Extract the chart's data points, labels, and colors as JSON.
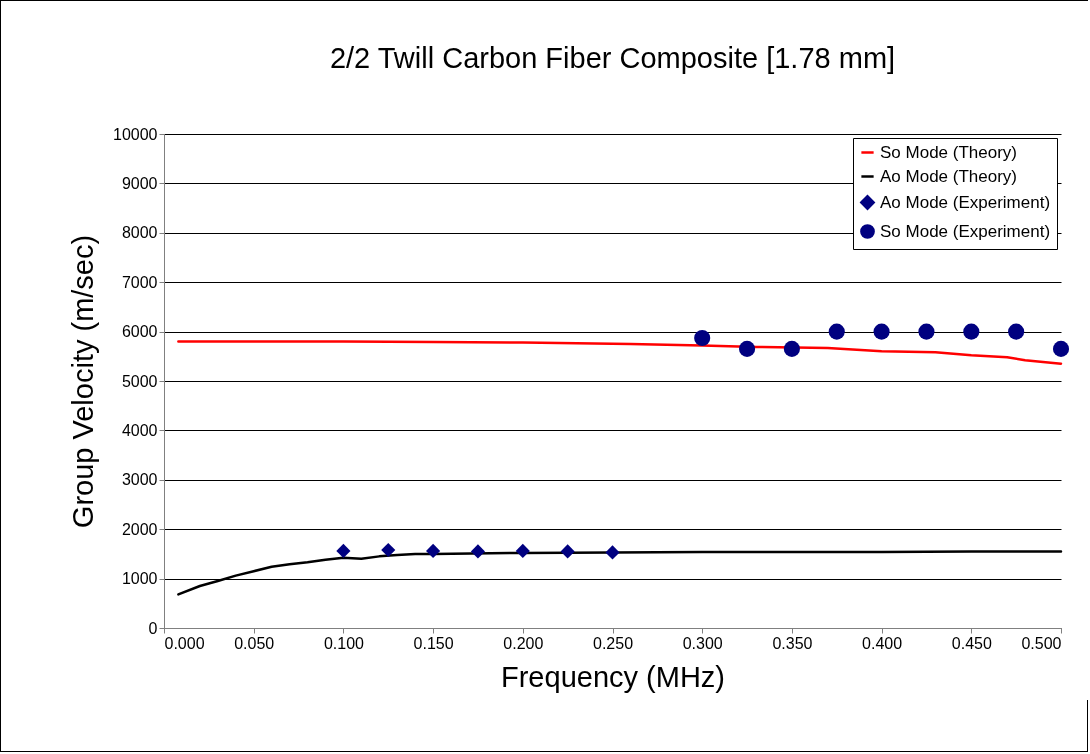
{
  "chart_data": {
    "type": "line",
    "title": "2/2 Twill Carbon Fiber Composite [1.78 mm]",
    "xlabel": "Frequency (MHz)",
    "ylabel": "Group Velocity (m/sec)",
    "xlim": [
      0,
      0.5
    ],
    "ylim": [
      0,
      10000
    ],
    "xticks": [
      {
        "value": 0,
        "label": "0.000"
      },
      {
        "value": 0.05,
        "label": "0.050"
      },
      {
        "value": 0.1,
        "label": "0.100"
      },
      {
        "value": 0.15,
        "label": "0.150"
      },
      {
        "value": 0.2,
        "label": "0.200"
      },
      {
        "value": 0.25,
        "label": "0.250"
      },
      {
        "value": 0.3,
        "label": "0.300"
      },
      {
        "value": 0.35,
        "label": "0.350"
      },
      {
        "value": 0.4,
        "label": "0.400"
      },
      {
        "value": 0.45,
        "label": "0.450"
      },
      {
        "value": 0.5,
        "label": "0.500"
      }
    ],
    "yticks": [
      0,
      1000,
      2000,
      3000,
      4000,
      5000,
      6000,
      7000,
      8000,
      9000,
      10000
    ],
    "grid": "y",
    "legend": "top right",
    "series": [
      {
        "name": "So Mode (Theory)",
        "type": "line",
        "color": "#ff0000",
        "x": [
          0.008,
          0.05,
          0.1,
          0.15,
          0.2,
          0.26,
          0.3,
          0.33,
          0.37,
          0.4,
          0.43,
          0.45,
          0.47,
          0.48,
          0.5
        ],
        "values": [
          5800,
          5800,
          5800,
          5790,
          5780,
          5750,
          5720,
          5690,
          5670,
          5600,
          5580,
          5520,
          5480,
          5420,
          5350
        ]
      },
      {
        "name": "Ao Mode (Theory)",
        "type": "line",
        "color": "#000000",
        "x": [
          0.008,
          0.02,
          0.03,
          0.04,
          0.05,
          0.06,
          0.07,
          0.08,
          0.09,
          0.1,
          0.11,
          0.12,
          0.13,
          0.14,
          0.15,
          0.2,
          0.25,
          0.3,
          0.35,
          0.4,
          0.45,
          0.5
        ],
        "values": [
          680,
          850,
          950,
          1060,
          1150,
          1240,
          1290,
          1330,
          1380,
          1420,
          1400,
          1450,
          1480,
          1500,
          1500,
          1520,
          1530,
          1540,
          1540,
          1540,
          1550,
          1550
        ]
      },
      {
        "name": "Ao Mode (Experiment)",
        "type": "scatter",
        "marker": "diamond",
        "color": "#000080",
        "x": [
          0.1,
          0.125,
          0.15,
          0.175,
          0.2,
          0.225,
          0.25
        ],
        "values": [
          1560,
          1580,
          1560,
          1550,
          1560,
          1550,
          1530
        ]
      },
      {
        "name": "So Mode (Experiment)",
        "type": "scatter",
        "marker": "circle",
        "color": "#000080",
        "x": [
          0.3,
          0.325,
          0.35,
          0.375,
          0.4,
          0.425,
          0.45,
          0.475,
          0.5
        ],
        "values": [
          5870,
          5650,
          5650,
          6000,
          6000,
          6000,
          6000,
          6000,
          5650
        ]
      }
    ]
  }
}
